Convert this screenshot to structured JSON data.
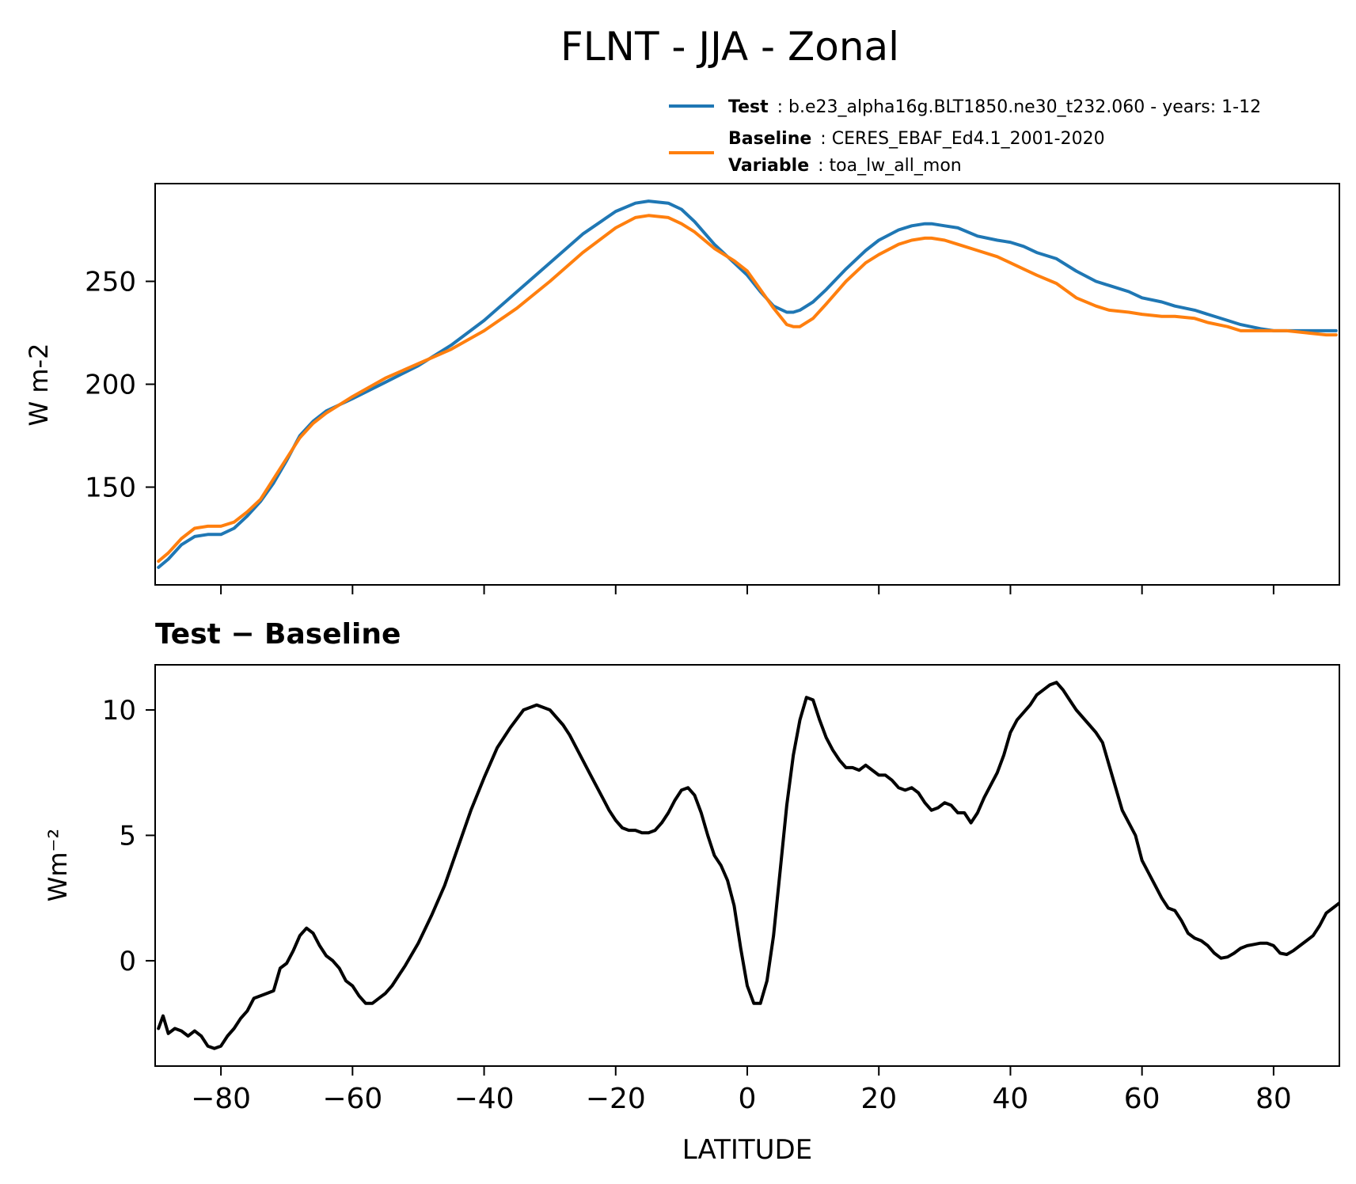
{
  "figure": {
    "title": "FLNT - JJA - Zonal"
  },
  "legend": {
    "test_key": "Test",
    "test_value": ": b.e23_alpha16g.BLT1850.ne30_t232.060 - years: 1-12",
    "baseline_key": "Baseline",
    "baseline_value": ": CERES_EBAF_Ed4.1_2001-2020",
    "variable_key": "Variable",
    "variable_value": ": toa_lw_all_mon"
  },
  "colors": {
    "test": "#1f77b4",
    "baseline": "#ff7f0e",
    "diff": "#000000"
  },
  "chart_data": [
    {
      "type": "line",
      "panel": "top",
      "title": "",
      "xlabel": "",
      "ylabel": "W m-2",
      "xlim": [
        -90,
        90
      ],
      "ylim": [
        102.5,
        297.5
      ],
      "xticks": [
        -80,
        -60,
        -40,
        -20,
        0,
        20,
        40,
        60,
        80
      ],
      "xtick_labels_visible": false,
      "yticks": [
        150,
        200,
        250
      ],
      "ytick_labels": [
        "150",
        "200",
        "250"
      ],
      "grid": false,
      "series": [
        {
          "name": "Test",
          "color": "#1f77b4",
          "x": [
            -89.5,
            -88,
            -86,
            -84,
            -82,
            -80,
            -78,
            -76,
            -74,
            -72,
            -70,
            -68,
            -66,
            -64,
            -62,
            -60,
            -55,
            -50,
            -45,
            -40,
            -35,
            -30,
            -25,
            -20,
            -17,
            -15,
            -12,
            -10,
            -8,
            -5,
            -2,
            0,
            2,
            4,
            6,
            7,
            8,
            10,
            12,
            15,
            18,
            20,
            23,
            25,
            27,
            28,
            30,
            32,
            35,
            38,
            40,
            42,
            44,
            47,
            50,
            53,
            55,
            58,
            60,
            63,
            65,
            68,
            70,
            73,
            75,
            78,
            80,
            82,
            85,
            88,
            89.5
          ],
          "y": [
            111,
            115,
            122,
            126,
            127,
            127,
            130,
            136,
            143,
            152,
            163,
            175,
            182,
            187,
            190,
            193,
            201,
            209,
            219,
            231,
            245,
            259,
            273,
            284,
            288,
            289,
            288,
            285,
            279,
            268,
            259,
            253,
            245,
            238,
            235,
            235,
            236,
            240,
            246,
            256,
            265,
            270,
            275,
            277,
            278,
            278,
            277,
            276,
            272,
            270,
            269,
            267,
            264,
            261,
            255,
            250,
            248,
            245,
            242,
            240,
            238,
            236,
            234,
            231,
            229,
            227,
            226,
            226,
            226,
            226,
            226
          ]
        },
        {
          "name": "Baseline",
          "color": "#ff7f0e",
          "x": [
            -89.5,
            -88,
            -86,
            -84,
            -82,
            -80,
            -78,
            -76,
            -74,
            -72,
            -70,
            -68,
            -66,
            -64,
            -62,
            -60,
            -55,
            -50,
            -45,
            -40,
            -35,
            -30,
            -25,
            -20,
            -17,
            -15,
            -12,
            -10,
            -8,
            -5,
            -2,
            0,
            2,
            4,
            6,
            7,
            8,
            10,
            12,
            15,
            18,
            20,
            23,
            25,
            27,
            28,
            30,
            32,
            35,
            38,
            40,
            42,
            44,
            47,
            50,
            53,
            55,
            58,
            60,
            63,
            65,
            68,
            70,
            73,
            75,
            78,
            80,
            82,
            85,
            88,
            89.5
          ],
          "y": [
            114,
            118,
            125,
            130,
            131,
            131,
            133,
            138,
            144,
            154,
            164,
            174,
            181,
            186,
            190,
            194,
            203,
            210,
            217,
            226,
            237,
            250,
            264,
            276,
            281,
            282,
            281,
            278,
            274,
            266,
            260,
            255,
            246,
            237,
            229,
            228,
            228,
            232,
            239,
            250,
            259,
            263,
            268,
            270,
            271,
            271,
            270,
            268,
            265,
            262,
            259,
            256,
            253,
            249,
            242,
            238,
            236,
            235,
            234,
            233,
            233,
            232,
            230,
            228,
            226,
            226,
            226,
            226,
            225,
            224,
            224
          ]
        }
      ]
    },
    {
      "type": "line",
      "panel": "bottom",
      "title": "Test − Baseline",
      "xlabel": "LATITUDE",
      "ylabel": "Wm⁻²",
      "xlim": [
        -90,
        90
      ],
      "ylim": [
        -4.2,
        11.8
      ],
      "xticks": [
        -80,
        -60,
        -40,
        -20,
        0,
        20,
        40,
        60,
        80
      ],
      "xtick_labels": [
        "−80",
        "−60",
        "−40",
        "−20",
        "0",
        "20",
        "40",
        "60",
        "80"
      ],
      "yticks": [
        0,
        5,
        10
      ],
      "ytick_labels": [
        "0",
        "5",
        "10"
      ],
      "grid": false,
      "series": [
        {
          "name": "Test − Baseline",
          "color": "#000000",
          "x": [
            -89.5,
            -88.8,
            -88,
            -87,
            -86,
            -85,
            -84,
            -83,
            -82,
            -81,
            -80,
            -79,
            -78,
            -77,
            -76,
            -75,
            -74,
            -73,
            -72,
            -71,
            -70,
            -69,
            -68,
            -67,
            -66,
            -65,
            -64,
            -63,
            -62,
            -61,
            -60,
            -59,
            -58,
            -57,
            -56,
            -55,
            -54,
            -53,
            -52,
            -50,
            -48,
            -46,
            -44,
            -42,
            -40,
            -38,
            -36,
            -34,
            -33,
            -32,
            -31,
            -30,
            -29,
            -28,
            -27,
            -26,
            -25,
            -24,
            -23,
            -22,
            -21,
            -20,
            -19,
            -18,
            -17,
            -16,
            -15,
            -14,
            -13,
            -12,
            -11,
            -10,
            -9,
            -8,
            -7,
            -6,
            -5,
            -4,
            -3,
            -2,
            -1,
            0,
            1,
            2,
            3,
            4,
            5,
            6,
            7,
            8,
            9,
            10,
            11,
            12,
            13,
            14,
            15,
            16,
            17,
            18,
            19,
            20,
            21,
            22,
            23,
            24,
            25,
            26,
            27,
            28,
            29,
            30,
            31,
            32,
            33,
            34,
            35,
            36,
            37,
            38,
            39,
            40,
            41,
            42,
            43,
            44,
            45,
            46,
            47,
            48,
            49,
            50,
            51,
            52,
            53,
            54,
            55,
            56,
            57,
            58,
            59,
            60,
            61,
            62,
            63,
            64,
            65,
            66,
            67,
            68,
            69,
            70,
            71,
            72,
            73,
            74,
            75,
            76,
            77,
            78,
            79,
            80,
            81,
            82,
            83,
            84,
            85,
            86,
            87,
            88,
            89,
            90
          ],
          "y": [
            -2.7,
            -2.2,
            -2.9,
            -2.7,
            -2.8,
            -3.0,
            -2.8,
            -3.0,
            -3.4,
            -3.5,
            -3.4,
            -3.0,
            -2.7,
            -2.3,
            -2.0,
            -1.5,
            -1.4,
            -1.3,
            -1.2,
            -0.3,
            -0.1,
            0.4,
            1.0,
            1.3,
            1.1,
            0.6,
            0.2,
            0.0,
            -0.3,
            -0.8,
            -1.0,
            -1.4,
            -1.7,
            -1.7,
            -1.5,
            -1.3,
            -1.0,
            -0.6,
            -0.2,
            0.7,
            1.8,
            3.0,
            4.5,
            6.0,
            7.3,
            8.5,
            9.3,
            10.0,
            10.1,
            10.2,
            10.1,
            10.0,
            9.7,
            9.4,
            9.0,
            8.5,
            8.0,
            7.5,
            7.0,
            6.5,
            6.0,
            5.6,
            5.3,
            5.2,
            5.2,
            5.1,
            5.1,
            5.2,
            5.5,
            5.9,
            6.4,
            6.8,
            6.9,
            6.6,
            5.9,
            5.0,
            4.2,
            3.8,
            3.2,
            2.2,
            0.5,
            -1.0,
            -1.7,
            -1.7,
            -0.8,
            1.0,
            3.6,
            6.2,
            8.2,
            9.6,
            10.5,
            10.4,
            9.6,
            8.9,
            8.4,
            8.0,
            7.7,
            7.7,
            7.6,
            7.8,
            7.6,
            7.4,
            7.4,
            7.2,
            6.9,
            6.8,
            6.9,
            6.7,
            6.3,
            6.0,
            6.1,
            6.3,
            6.2,
            5.9,
            5.9,
            5.5,
            5.9,
            6.5,
            7.0,
            7.5,
            8.2,
            9.1,
            9.6,
            9.9,
            10.2,
            10.6,
            10.8,
            11.0,
            11.1,
            10.8,
            10.4,
            10.0,
            9.7,
            9.4,
            9.1,
            8.7,
            7.8,
            6.9,
            6.0,
            5.5,
            5.0,
            4.0,
            3.5,
            3.0,
            2.5,
            2.1,
            2.0,
            1.6,
            1.1,
            0.9,
            0.8,
            0.6,
            0.3,
            0.1,
            0.15,
            0.3,
            0.5,
            0.6,
            0.65,
            0.7,
            0.7,
            0.6,
            0.3,
            0.25,
            0.4,
            0.6,
            0.8,
            1.0,
            1.4,
            1.9,
            2.1,
            2.3
          ]
        }
      ]
    }
  ]
}
